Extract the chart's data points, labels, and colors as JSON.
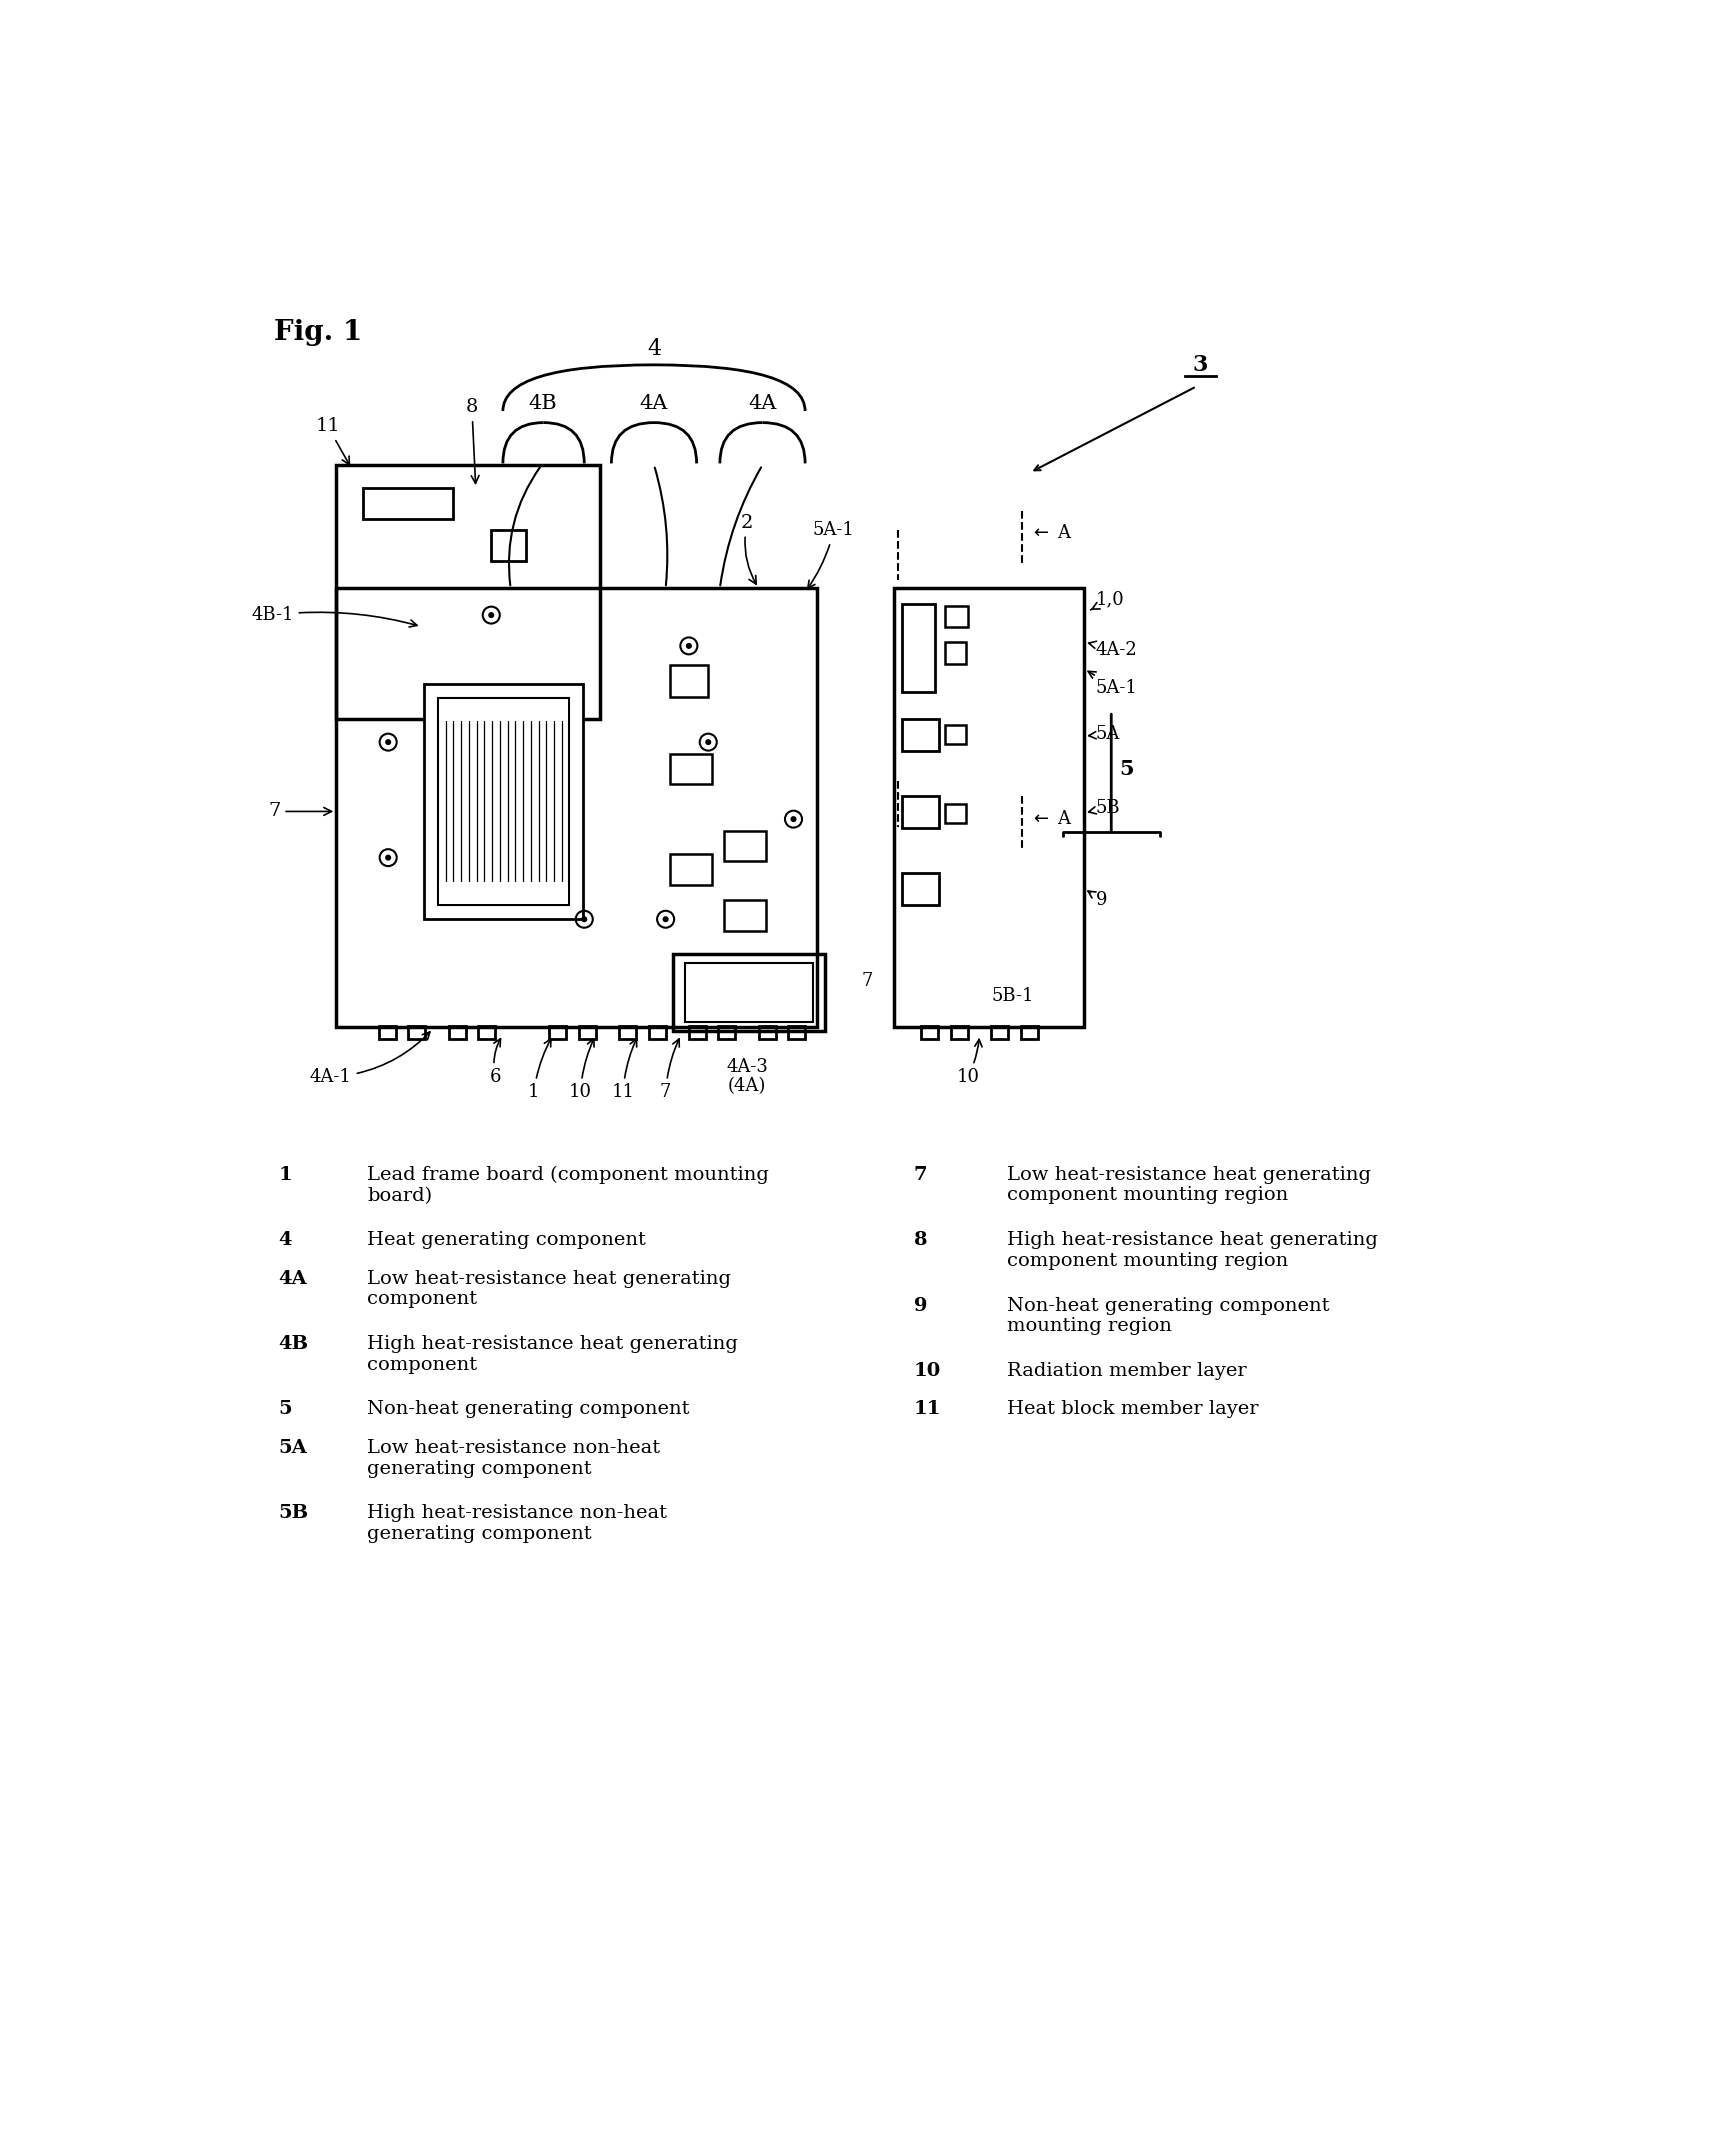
{
  "fig_label": "Fig. 1",
  "background_color": "#ffffff",
  "legend_items_left": [
    [
      "1",
      "Lead frame board (component mounting\nboard)"
    ],
    [
      "4",
      "Heat generating component"
    ],
    [
      "4A",
      "Low heat-resistance heat generating\ncomponent"
    ],
    [
      "4B",
      "High heat-resistance heat generating\ncomponent"
    ],
    [
      "5",
      "Non-heat generating component"
    ],
    [
      "5A",
      "Low heat-resistance non-heat\ngenerating component"
    ],
    [
      "5B",
      "High heat-resistance non-heat\ngenerating component"
    ]
  ],
  "legend_items_right": [
    [
      "7",
      "Low heat-resistance heat generating\ncomponent mounting region"
    ],
    [
      "8",
      "High heat-resistance heat generating\ncomponent mounting region"
    ],
    [
      "9",
      "Non-heat generating component\nmounting region"
    ],
    [
      "10",
      "Radiation member layer"
    ],
    [
      "11",
      "Heat block member layer"
    ]
  ]
}
